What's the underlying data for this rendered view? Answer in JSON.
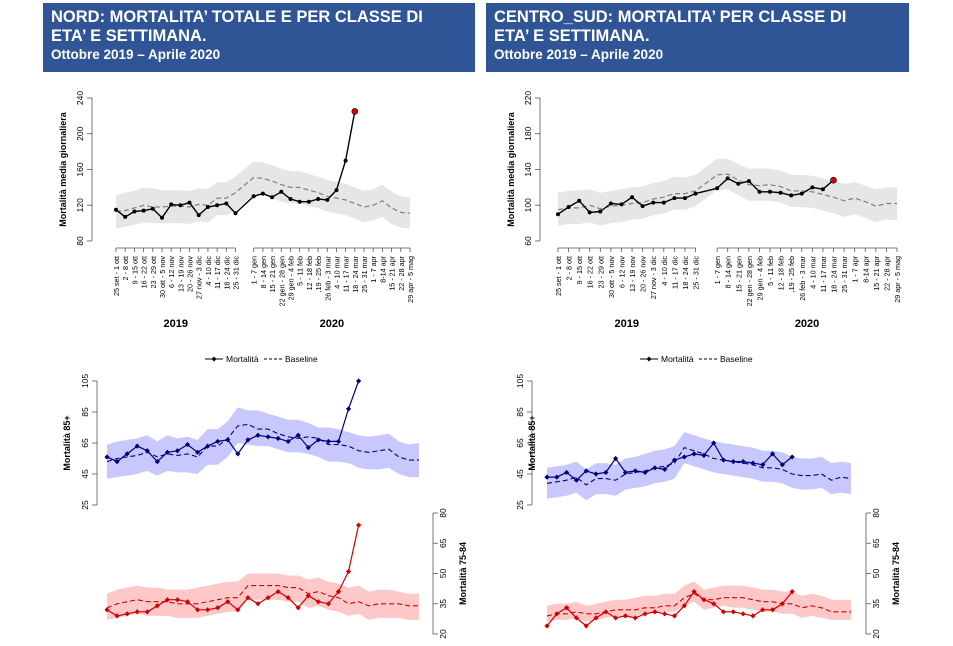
{
  "panels": [
    {
      "title": "NORD: MORTALITA’ TOTALE E PER CLASSE DI\nETA’ E SETTIMANA.",
      "subtitle": "Ottobre 2019 – Aprile 2020"
    },
    {
      "title": "CENTRO_SUD: MORTALITA’ PER CLASSE DI\nETA’ E SETTIMANA.",
      "subtitle": "Ottobre 2019 – Aprile 2020"
    }
  ],
  "colors": {
    "banner": "#2f5597",
    "band_total": "#e6e6e6",
    "line_total": "#000000",
    "baseline_total": "#7f7f7f",
    "last_point": "#e00000",
    "band_85": "#c8c8ff",
    "line_85": "#00007f",
    "band_7584": "#ffc8c8",
    "line_7584": "#d00000"
  },
  "chart_data": [
    {
      "id": "nord-totale",
      "type": "line",
      "title": "",
      "xlabel": "",
      "ylabel": "Mortalità media giornaliera",
      "ylim": [
        80,
        240
      ],
      "yticks": [
        80,
        120,
        160,
        200,
        240
      ],
      "groups": [
        {
          "label": "2019",
          "categories": [
            "25 set - 1 ott",
            "2 - 8 ott",
            "9 - 15 ott",
            "16 - 22 ott",
            "23 - 29 ott",
            "30 ott - 5 nov",
            "6 - 12 nov",
            "13 - 19 nov",
            "20 - 26 nov",
            "27 nov - 3 dic",
            "4 - 10 dic",
            "11 - 17 dic",
            "18 - 24 dic",
            "25 - 31 dic"
          ]
        },
        {
          "label": "2020",
          "categories": [
            "1 - 7 gen",
            "8 - 14 gen",
            "15 - 21 gen",
            "22 gen - 28 gen",
            "29 gen - 4 feb",
            "5 - 11 feb",
            "12 - 18 feb",
            ",19 - 25 feb",
            "26 feb - 3 mar",
            "4 - 10 mar",
            "11 - 17 mar",
            "18 - 24 mar",
            "25 - 31 mar",
            "1 - 7 apr",
            "8-14 apr",
            "15 - 21 apr",
            "22 - 28 apr",
            "29 apr - 5 mag"
          ]
        }
      ],
      "series": [
        {
          "name": "Mortalità",
          "values": [
            115,
            107,
            113,
            114,
            116,
            106,
            121,
            120,
            123,
            109,
            118,
            120,
            122,
            111,
            130,
            133,
            129,
            135,
            127,
            124,
            124,
            127,
            126,
            137,
            170,
            225
          ]
        },
        {
          "name": "Baseline",
          "values": [
            113,
            114,
            117,
            120,
            118,
            118,
            119,
            119,
            118,
            121,
            120,
            128,
            128,
            134,
            151,
            150,
            147,
            143,
            140,
            140,
            137,
            134,
            130,
            128,
            126,
            122,
            118,
            120,
            125,
            117,
            112,
            111
          ]
        },
        {
          "name": "Band upper",
          "values": [
            131,
            134,
            136,
            140,
            139,
            137,
            137,
            137,
            136,
            139,
            138,
            146,
            146,
            152,
            169,
            168,
            165,
            161,
            158,
            158,
            155,
            152,
            148,
            146,
            144,
            140,
            136,
            138,
            143,
            135,
            130,
            129
          ]
        },
        {
          "name": "Band lower",
          "values": [
            94,
            96,
            98,
            101,
            100,
            100,
            100,
            100,
            99,
            102,
            101,
            109,
            109,
            114,
            132,
            131,
            128,
            124,
            122,
            122,
            119,
            117,
            113,
            111,
            109,
            105,
            101,
            103,
            107,
            99,
            95,
            94
          ]
        }
      ],
      "legend": []
    },
    {
      "id": "centro-sud-totale",
      "type": "line",
      "title": "",
      "xlabel": "",
      "ylabel": "Mortalità media giornaliera",
      "ylim": [
        60,
        220
      ],
      "yticks": [
        60,
        100,
        140,
        180,
        220
      ],
      "groups": [
        {
          "label": "2019",
          "categories": [
            "25 set - 1 ott",
            "2 - 8 ott",
            "9 - 15 ott",
            "16 - 22 ott",
            "23 - 29 ott",
            "30 ott - 5 nov",
            "6 - 12 nov",
            "13 - 19 nov",
            "20 - 26 nov",
            "27 nov - 3 dic",
            "4 - 10 dic",
            "11 - 17 dic",
            "18 - 24 dic",
            "25 - 31 dic"
          ]
        },
        {
          "label": "2020",
          "categories": [
            "1 - 7 gen",
            "8 - 14 gen",
            "15 - 21 gen",
            "22 gen - 28 gen",
            "29 gen - 4 feb",
            "5 - 11 feb",
            "12 - 18 feb",
            ",19 - 25 feb",
            "26 feb - 3 mar",
            "4 - 10 mar",
            "11 - 17 mar",
            "18 - 24 mar",
            "25 - 31 mar",
            "1 - 7 apr",
            "8-14 apr",
            "15 - 21 apr",
            "22 - 28 apr",
            "29 apr - 5 mag"
          ]
        }
      ],
      "series": [
        {
          "name": "Mortalità",
          "values": [
            90,
            98,
            105,
            92,
            93,
            102,
            101,
            109,
            99,
            103,
            103,
            108,
            108,
            113,
            119,
            130,
            124,
            127,
            115,
            115,
            114,
            111,
            113,
            120,
            118,
            128
          ]
        },
        {
          "name": "Baseline",
          "values": [
            95,
            97,
            97,
            100,
            96,
            99,
            100,
            102,
            103,
            107,
            109,
            113,
            113,
            116,
            134,
            135,
            128,
            123,
            122,
            123,
            121,
            116,
            116,
            115,
            112,
            109,
            105,
            108,
            104,
            99,
            102,
            102
          ]
        },
        {
          "name": "Band upper",
          "values": [
            114,
            116,
            117,
            118,
            114,
            116,
            118,
            120,
            121,
            125,
            127,
            132,
            131,
            134,
            152,
            152,
            146,
            141,
            141,
            141,
            139,
            134,
            134,
            133,
            130,
            127,
            124,
            126,
            122,
            118,
            120,
            120
          ]
        },
        {
          "name": "Band lower",
          "values": [
            77,
            79,
            79,
            81,
            77,
            80,
            81,
            84,
            85,
            89,
            91,
            95,
            95,
            99,
            117,
            118,
            111,
            105,
            105,
            105,
            103,
            98,
            98,
            97,
            94,
            91,
            87,
            90,
            86,
            81,
            84,
            83
          ]
        }
      ],
      "legend": []
    },
    {
      "id": "nord-classi",
      "type": "line",
      "title": "",
      "legend": [
        "Mortalità",
        "Baseline"
      ],
      "legend_position": "top",
      "axes": [
        {
          "name": "Mortalità 85+",
          "side": "left",
          "ylim": [
            25,
            105
          ],
          "yticks": [
            25,
            45,
            65,
            85,
            105
          ]
        },
        {
          "name": "Mortalità 75-84",
          "side": "right",
          "ylim": [
            20,
            80
          ],
          "yticks": [
            20,
            35,
            50,
            65,
            80
          ]
        }
      ],
      "series": [
        {
          "name": "Mortalità 85+",
          "axis": 0,
          "values": [
            56,
            53,
            58,
            63,
            60,
            53,
            59,
            60,
            64,
            59,
            63,
            66,
            67,
            58,
            67,
            70,
            69,
            68,
            66,
            70,
            62,
            67,
            66,
            66,
            87,
            105
          ]
        },
        {
          "name": "Baseline 85+",
          "axis": 0,
          "values": [
            53,
            55,
            56,
            57,
            59,
            56,
            58,
            57,
            58,
            56,
            63,
            63,
            68,
            76,
            77,
            74,
            74,
            71,
            69,
            68,
            69,
            68,
            64,
            64,
            63,
            60,
            59,
            60,
            61,
            56,
            54,
            54
          ]
        },
        {
          "name": "Band upper 85+",
          "axis": 0,
          "values": [
            64,
            66,
            67,
            68,
            70,
            66,
            70,
            68,
            69,
            67,
            74,
            74,
            79,
            88,
            86,
            86,
            84,
            82,
            80,
            80,
            78,
            75,
            75,
            74,
            72,
            70,
            69,
            70,
            71,
            66,
            64,
            65
          ]
        },
        {
          "name": "Band lower 85+",
          "axis": 0,
          "values": [
            42,
            43,
            44,
            45,
            47,
            44,
            47,
            46,
            46,
            45,
            51,
            51,
            56,
            65,
            64,
            63,
            63,
            61,
            59,
            59,
            58,
            56,
            53,
            53,
            52,
            49,
            48,
            48,
            49,
            45,
            43,
            43
          ]
        },
        {
          "name": "Mortalità 75-84",
          "axis": 1,
          "values": [
            32,
            29,
            30,
            31,
            31,
            34,
            37,
            37,
            36,
            32,
            32,
            33,
            36,
            32,
            38,
            35,
            38,
            41,
            38,
            33,
            39,
            36,
            35,
            41,
            51,
            74
          ]
        },
        {
          "name": "Baseline 75-84",
          "axis": 1,
          "values": [
            33,
            35,
            36,
            37,
            36,
            36,
            36,
            35,
            35,
            35,
            36,
            37,
            38,
            38,
            44,
            44,
            44,
            44,
            43,
            43,
            40,
            41,
            39,
            38,
            35,
            36,
            34,
            35,
            35,
            35,
            34,
            34
          ]
        },
        {
          "name": "Band upper 75-84",
          "axis": 1,
          "values": [
            40,
            42,
            43,
            44,
            43,
            43,
            42,
            42,
            42,
            43,
            44,
            45,
            46,
            46,
            50,
            50,
            50,
            50,
            49,
            49,
            47,
            48,
            46,
            45,
            43,
            44,
            41,
            42,
            42,
            41,
            40,
            40
          ]
        },
        {
          "name": "Band lower 75-84",
          "axis": 1,
          "values": [
            27,
            28,
            29,
            30,
            29,
            29,
            29,
            28,
            28,
            28,
            29,
            30,
            31,
            31,
            37,
            37,
            37,
            37,
            36,
            36,
            33,
            34,
            32,
            31,
            29,
            30,
            27,
            28,
            28,
            28,
            27,
            27
          ]
        }
      ]
    },
    {
      "id": "centro-sud-classi",
      "type": "line",
      "title": "",
      "legend": [
        "Mortalità",
        "Baseline"
      ],
      "legend_position": "top",
      "axes": [
        {
          "name": "Mortalità 85+",
          "side": "left",
          "ylim": [
            25,
            105
          ],
          "yticks": [
            25,
            45,
            65,
            85,
            105
          ]
        },
        {
          "name": "Mortalità 75-84",
          "side": "right",
          "ylim": [
            20,
            80
          ],
          "yticks": [
            20,
            35,
            50,
            65,
            80
          ]
        }
      ],
      "series": [
        {
          "name": "Mortalità 85+",
          "axis": 0,
          "values": [
            43,
            43,
            46,
            41,
            47,
            45,
            46,
            55,
            46,
            47,
            46,
            49,
            48,
            54,
            56,
            58,
            57,
            65,
            54,
            53,
            53,
            52,
            51,
            58,
            51,
            56
          ]
        },
        {
          "name": "Baseline 85+",
          "axis": 0,
          "values": [
            39,
            40,
            41,
            43,
            38,
            42,
            42,
            41,
            45,
            46,
            47,
            49,
            50,
            52,
            62,
            60,
            58,
            55,
            54,
            53,
            52,
            51,
            49,
            49,
            48,
            45,
            44,
            44,
            45,
            41,
            43,
            42
          ]
        },
        {
          "name": "Band upper 85+",
          "axis": 0,
          "values": [
            49,
            50,
            51,
            53,
            48,
            52,
            52,
            51,
            55,
            56,
            58,
            60,
            61,
            63,
            72,
            70,
            68,
            66,
            65,
            64,
            63,
            62,
            60,
            60,
            59,
            56,
            55,
            55,
            56,
            52,
            53,
            52
          ]
        },
        {
          "name": "Band lower 85+",
          "axis": 0,
          "values": [
            29,
            30,
            31,
            33,
            28,
            32,
            32,
            31,
            35,
            36,
            37,
            39,
            40,
            42,
            52,
            50,
            48,
            46,
            45,
            44,
            43,
            42,
            40,
            40,
            39,
            36,
            35,
            35,
            36,
            32,
            33,
            32
          ]
        },
        {
          "name": "Mortalità 75-84",
          "axis": 1,
          "values": [
            24,
            30,
            33,
            28,
            24,
            28,
            31,
            28,
            29,
            28,
            30,
            31,
            30,
            29,
            34,
            41,
            37,
            35,
            31,
            31,
            30,
            29,
            32,
            32,
            35,
            41
          ]
        },
        {
          "name": "Baseline 75-84",
          "axis": 1,
          "values": [
            29,
            30,
            30,
            31,
            30,
            30,
            31,
            32,
            32,
            32,
            33,
            33,
            34,
            34,
            38,
            40,
            37,
            37,
            38,
            38,
            38,
            37,
            36,
            36,
            35,
            35,
            33,
            34,
            33,
            31,
            31,
            31
          ]
        },
        {
          "name": "Band upper 75-84",
          "axis": 1,
          "values": [
            34,
            35,
            35,
            36,
            34,
            35,
            36,
            37,
            37,
            38,
            39,
            39,
            40,
            40,
            44,
            46,
            42,
            43,
            44,
            44,
            44,
            43,
            42,
            42,
            41,
            41,
            39,
            40,
            39,
            37,
            37,
            37
          ]
        },
        {
          "name": "Band lower 75-84",
          "axis": 1,
          "values": [
            26,
            27,
            27,
            28,
            26,
            27,
            28,
            29,
            29,
            29,
            30,
            30,
            31,
            31,
            34,
            36,
            32,
            33,
            34,
            33,
            33,
            32,
            31,
            31,
            30,
            30,
            28,
            29,
            28,
            27,
            27,
            27
          ]
        }
      ]
    }
  ]
}
